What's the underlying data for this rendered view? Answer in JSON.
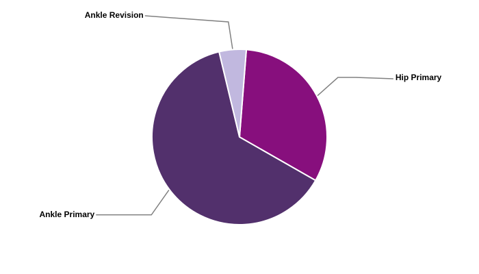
{
  "chart_data": {
    "type": "pie",
    "categories": [
      "Hip Primary",
      "Ankle Primary",
      "Ankle Revision"
    ],
    "values": [
      32,
      63,
      5
    ],
    "colors": [
      "#870f7d",
      "#52306c",
      "#c1b8df"
    ]
  }
}
